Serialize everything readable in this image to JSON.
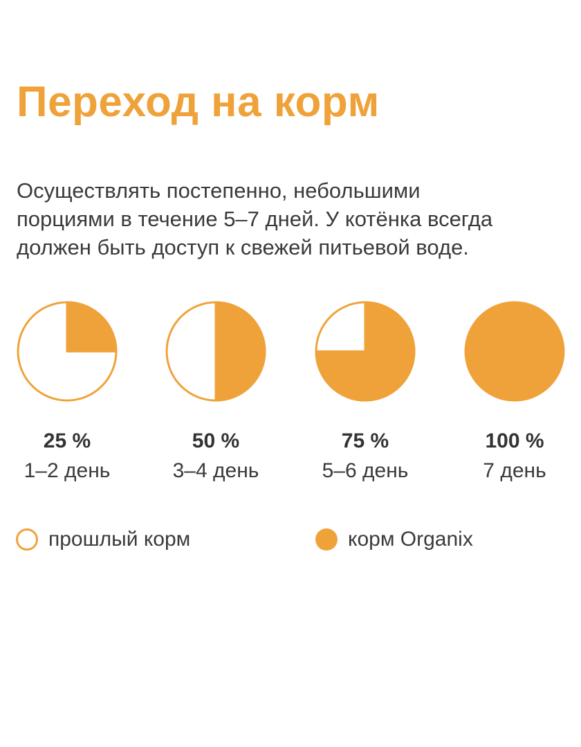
{
  "title": "Переход на корм",
  "description": {
    "lines": [
      "Осуществлять постепенно, небольшими",
      "порциями в течение 5–7 дней. У котёнка всегда",
      "должен быть доступ к свежей питьевой воде."
    ]
  },
  "colors": {
    "accent": "#f0a23a",
    "text": "#3a3a3a",
    "background": "#ffffff"
  },
  "chart_data": {
    "type": "pie",
    "title": "",
    "items": [
      {
        "value": 25,
        "label": "25 %",
        "caption": "1–2 день"
      },
      {
        "value": 50,
        "label": "50 %",
        "caption": "3–4 день"
      },
      {
        "value": 75,
        "label": "75 %",
        "caption": "5–6 день"
      },
      {
        "value": 100,
        "label": "100 %",
        "caption": "7 день"
      }
    ],
    "legend": [
      {
        "label": "прошлый корм",
        "fill": "#ffffff",
        "stroke": "#f0a23a"
      },
      {
        "label": "корм Organix",
        "fill": "#f0a23a",
        "stroke": "#f0a23a"
      }
    ]
  }
}
